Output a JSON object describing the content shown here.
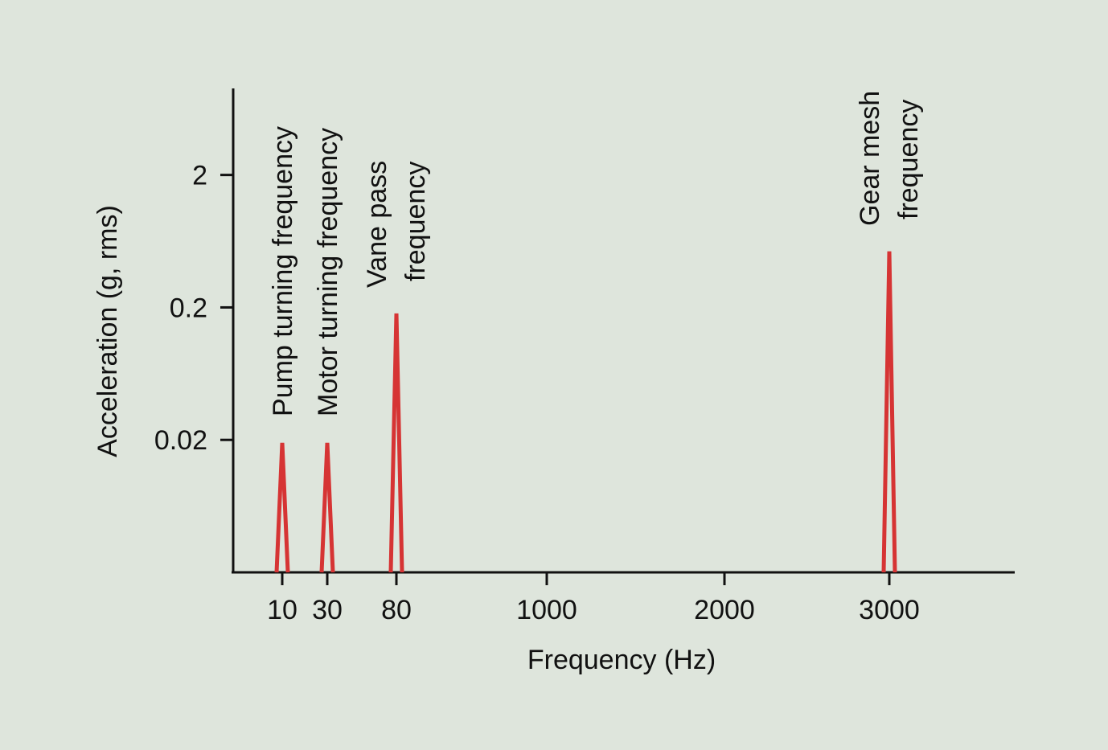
{
  "chart_data": {
    "type": "spectrum",
    "x_label": "Frequency (Hz)",
    "y_label": "Acceleration (g, rms)",
    "log_y": true,
    "xticks": [
      10,
      30,
      80,
      1000,
      2000,
      3000
    ],
    "ylim": [
      0.002,
      9
    ],
    "yticks": [
      0.02,
      0.2,
      2
    ],
    "series": [
      {
        "name": null,
        "color": "#d63434",
        "x": [
          10,
          30,
          80,
          3000
        ],
        "values": [
          0.019,
          0.019,
          0.18,
          0.53
        ]
      }
    ],
    "annotations": [
      {
        "lines": [
          "Pump turning frequency"
        ]
      },
      {
        "lines": [
          "Motor turning frequency"
        ]
      },
      {
        "lines": [
          "Vane pass",
          "frequency"
        ]
      },
      {
        "lines": [
          "Gear mesh",
          "frequency"
        ]
      }
    ]
  }
}
